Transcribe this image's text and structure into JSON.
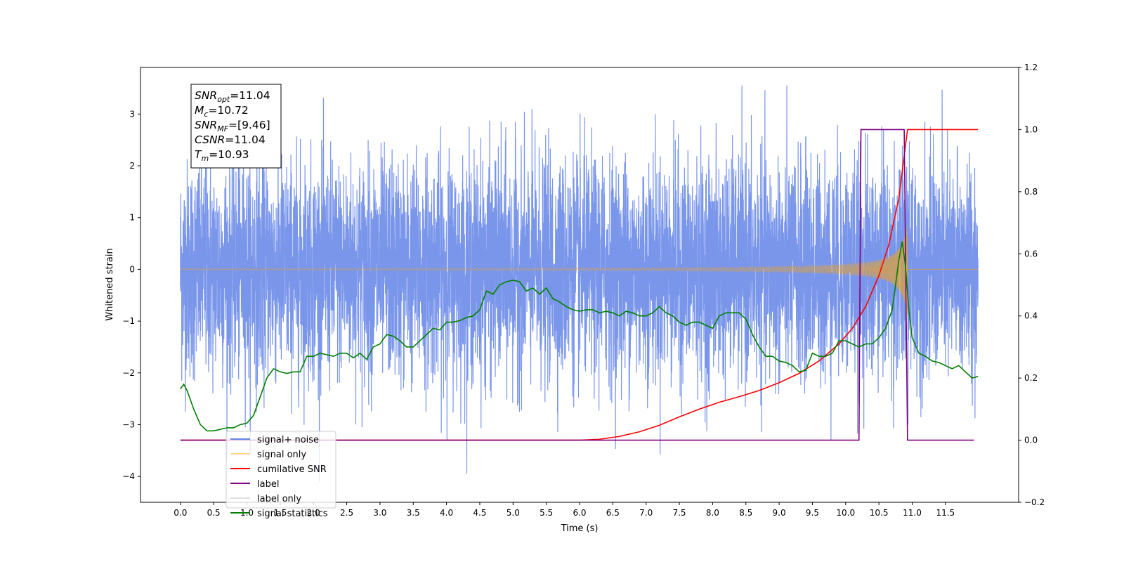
{
  "chart_data": {
    "type": "line",
    "xlabel": "Time (s)",
    "ylabel": "Whitened strain",
    "xlim": [
      -0.6,
      12.6
    ],
    "ylim": [
      -4.5,
      3.9
    ],
    "ylim_right": [
      -0.2,
      1.2
    ],
    "x_ticks": [
      0.0,
      0.5,
      1.0,
      1.5,
      2.0,
      2.5,
      3.0,
      3.5,
      4.0,
      4.5,
      5.0,
      5.5,
      6.0,
      6.5,
      7.0,
      7.5,
      8.0,
      8.5,
      9.0,
      9.5,
      10.0,
      10.5,
      11.0,
      11.5
    ],
    "x_tick_labels": [
      "0.0",
      "0.5",
      "1.0",
      "1.5",
      "2.0",
      "2.5",
      "3.0",
      "3.5",
      "4.0",
      "4.5",
      "5.0",
      "5.5",
      "6.0",
      "6.5",
      "7.0",
      "7.5",
      "8.0",
      "8.5",
      "9.0",
      "9.5",
      "10.0",
      "10.5",
      "11.0",
      "11.5"
    ],
    "y_ticks": [
      -4,
      -3,
      -2,
      -1,
      0,
      1,
      2,
      3
    ],
    "y_tick_labels": [
      "−4",
      "−3",
      "−2",
      "−1",
      "0",
      "1",
      "2",
      "3"
    ],
    "y_right_ticks": [
      -0.2,
      0.0,
      0.2,
      0.4,
      0.6,
      0.8,
      1.0,
      1.2
    ],
    "y_right_tick_labels": [
      "−0.2",
      "0.0",
      "0.2",
      "0.4",
      "0.6",
      "0.8",
      "1.0",
      "1.2"
    ],
    "grid": false,
    "legend_position": "lower-left",
    "annotation": {
      "lines": [
        {
          "base": "SNR",
          "sub": "opt",
          "value": "=11.04"
        },
        {
          "base": "M",
          "sub": "c",
          "value": "=10.72"
        },
        {
          "base": "SNR",
          "sub": "MF",
          "value": "=[9.46]"
        },
        {
          "base": "CSNR",
          "sub": "",
          "value": "=11.04"
        },
        {
          "base": "T",
          "sub": "m",
          "value": "=10.93"
        }
      ]
    },
    "series": [
      {
        "name": "signal+ noise",
        "axis": "left",
        "color": "#4169e1",
        "kind": "noise",
        "x_range": [
          0.0,
          11.99
        ],
        "noise_std": 1.05,
        "spike_max": 3.55,
        "spike_min": -4.1
      },
      {
        "name": "signal only",
        "axis": "left",
        "color": "#ffa500",
        "kind": "chirp",
        "x_range": [
          0.0,
          11.99
        ],
        "merger_time": 10.93,
        "peak_amplitude": 0.95
      },
      {
        "name": "cumilative SNR",
        "axis": "right",
        "color": "#ff0000",
        "x": [
          0.0,
          6.0,
          6.3,
          6.6,
          6.9,
          7.2,
          7.5,
          7.8,
          8.1,
          8.4,
          8.7,
          9.0,
          9.3,
          9.6,
          9.9,
          10.1,
          10.3,
          10.5,
          10.65,
          10.8,
          10.93,
          10.95,
          11.99
        ],
        "values": [
          0.0,
          0.0,
          0.003,
          0.012,
          0.027,
          0.048,
          0.075,
          0.1,
          0.122,
          0.14,
          0.16,
          0.185,
          0.215,
          0.255,
          0.31,
          0.36,
          0.43,
          0.53,
          0.63,
          0.78,
          1.0,
          1.0,
          1.0
        ]
      },
      {
        "name": "label",
        "axis": "right",
        "color": "#800080",
        "x": [
          0.0,
          10.2,
          10.23,
          10.88,
          10.93,
          11.93
        ],
        "values": [
          0.0,
          0.0,
          1.0,
          1.0,
          0.0,
          0.0
        ]
      },
      {
        "name": "label only",
        "axis": "right",
        "color": "#e0e0e0",
        "hidden_line": true,
        "x": [],
        "values": []
      },
      {
        "name": "signal statistics",
        "axis": "right",
        "color": "#008000",
        "x": [
          0.0,
          0.05,
          0.1,
          0.2,
          0.3,
          0.4,
          0.5,
          0.6,
          0.7,
          0.8,
          0.9,
          1.0,
          1.1,
          1.2,
          1.3,
          1.4,
          1.5,
          1.6,
          1.7,
          1.8,
          1.9,
          2.0,
          2.1,
          2.2,
          2.3,
          2.4,
          2.5,
          2.6,
          2.7,
          2.8,
          2.9,
          3.0,
          3.1,
          3.2,
          3.3,
          3.4,
          3.5,
          3.6,
          3.7,
          3.8,
          3.9,
          4.0,
          4.1,
          4.2,
          4.3,
          4.4,
          4.5,
          4.6,
          4.7,
          4.8,
          4.9,
          5.0,
          5.1,
          5.2,
          5.3,
          5.4,
          5.5,
          5.6,
          5.7,
          5.8,
          5.9,
          6.0,
          6.1,
          6.2,
          6.3,
          6.4,
          6.5,
          6.6,
          6.7,
          6.8,
          6.9,
          7.0,
          7.1,
          7.2,
          7.3,
          7.4,
          7.5,
          7.6,
          7.7,
          7.8,
          7.9,
          8.0,
          8.1,
          8.2,
          8.3,
          8.4,
          8.5,
          8.6,
          8.7,
          8.8,
          8.9,
          9.0,
          9.1,
          9.2,
          9.3,
          9.4,
          9.5,
          9.6,
          9.7,
          9.8,
          9.9,
          10.0,
          10.1,
          10.2,
          10.3,
          10.4,
          10.5,
          10.6,
          10.7,
          10.8,
          10.85,
          10.9,
          10.95,
          11.0,
          11.1,
          11.2,
          11.3,
          11.4,
          11.5,
          11.6,
          11.7,
          11.8,
          11.9,
          11.99
        ],
        "values": [
          0.165,
          0.18,
          0.16,
          0.1,
          0.05,
          0.03,
          0.03,
          0.035,
          0.04,
          0.04,
          0.05,
          0.055,
          0.08,
          0.14,
          0.2,
          0.23,
          0.22,
          0.215,
          0.22,
          0.22,
          0.27,
          0.27,
          0.28,
          0.275,
          0.27,
          0.28,
          0.28,
          0.265,
          0.28,
          0.26,
          0.3,
          0.31,
          0.34,
          0.335,
          0.32,
          0.3,
          0.3,
          0.32,
          0.34,
          0.36,
          0.355,
          0.38,
          0.38,
          0.385,
          0.395,
          0.4,
          0.42,
          0.48,
          0.47,
          0.5,
          0.51,
          0.515,
          0.51,
          0.48,
          0.49,
          0.47,
          0.49,
          0.455,
          0.445,
          0.43,
          0.42,
          0.415,
          0.42,
          0.42,
          0.41,
          0.415,
          0.41,
          0.4,
          0.415,
          0.41,
          0.4,
          0.4,
          0.41,
          0.43,
          0.41,
          0.4,
          0.38,
          0.37,
          0.38,
          0.38,
          0.37,
          0.36,
          0.4,
          0.41,
          0.41,
          0.41,
          0.39,
          0.34,
          0.3,
          0.27,
          0.27,
          0.255,
          0.25,
          0.24,
          0.22,
          0.225,
          0.28,
          0.27,
          0.27,
          0.28,
          0.32,
          0.32,
          0.31,
          0.3,
          0.31,
          0.31,
          0.33,
          0.36,
          0.42,
          0.58,
          0.64,
          0.56,
          0.42,
          0.33,
          0.28,
          0.27,
          0.255,
          0.25,
          0.24,
          0.23,
          0.24,
          0.22,
          0.2,
          0.205
        ]
      }
    ]
  }
}
